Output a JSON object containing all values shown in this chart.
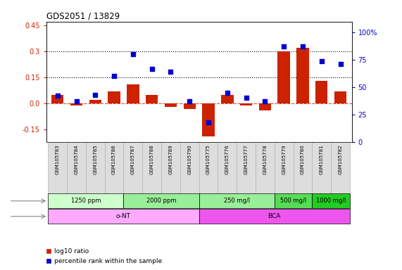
{
  "title": "GDS2051 / 13829",
  "samples": [
    "GSM105783",
    "GSM105784",
    "GSM105785",
    "GSM105786",
    "GSM105787",
    "GSM105788",
    "GSM105789",
    "GSM105790",
    "GSM105775",
    "GSM105776",
    "GSM105777",
    "GSM105778",
    "GSM105779",
    "GSM105780",
    "GSM105781",
    "GSM105782"
  ],
  "log10_ratio": [
    0.05,
    -0.01,
    0.02,
    0.07,
    0.11,
    0.05,
    -0.02,
    -0.03,
    -0.19,
    0.05,
    -0.01,
    -0.04,
    0.3,
    0.32,
    0.13,
    0.07
  ],
  "percentile": [
    42,
    37,
    43,
    60,
    80,
    67,
    64,
    37,
    18,
    45,
    40,
    37,
    87,
    87,
    74,
    71
  ],
  "dose_groups": [
    {
      "label": "1250 ppm",
      "start": 0,
      "end": 4,
      "color": "#ccffcc"
    },
    {
      "label": "2000 ppm",
      "start": 4,
      "end": 8,
      "color": "#99ee99"
    },
    {
      "label": "250 mg/l",
      "start": 8,
      "end": 12,
      "color": "#99ee99"
    },
    {
      "label": "500 mg/l",
      "start": 12,
      "end": 14,
      "color": "#55dd55"
    },
    {
      "label": "1000 mg/l",
      "start": 14,
      "end": 16,
      "color": "#22cc22"
    }
  ],
  "agent_groups": [
    {
      "label": "o-NT",
      "start": 0,
      "end": 8,
      "color": "#ffaaff"
    },
    {
      "label": "BCA",
      "start": 8,
      "end": 16,
      "color": "#ee55ee"
    }
  ],
  "bar_color": "#cc2200",
  "dot_color": "#0000cc",
  "hline_color": "#cc2200",
  "ylim_left": [
    -0.22,
    0.47
  ],
  "ylim_right": [
    0,
    110
  ],
  "yticks_left": [
    -0.15,
    0.0,
    0.15,
    0.3,
    0.45
  ],
  "yticks_right": [
    0,
    25,
    50,
    75,
    100
  ],
  "hlines": [
    0.15,
    0.3
  ],
  "background_color": "#ffffff"
}
